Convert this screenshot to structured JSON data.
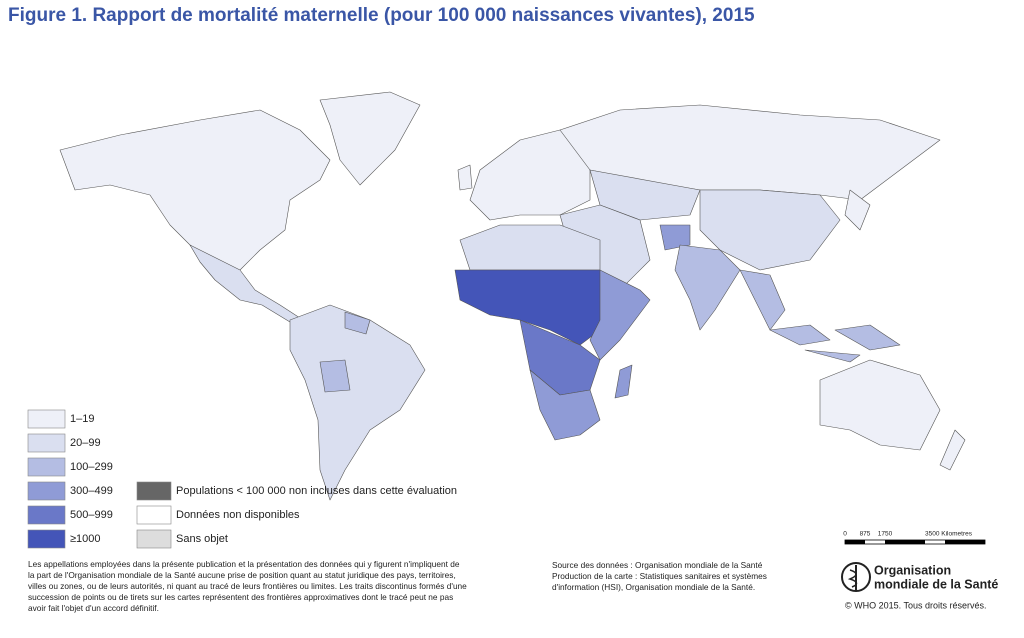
{
  "header": {
    "title": "Figure 1. Rapport de mortalité maternelle (pour 100 000 naissances vivantes), 2015"
  },
  "legend": {
    "classes": [
      {
        "label": "1–19",
        "color": "#eef0f8"
      },
      {
        "label": "20–99",
        "color": "#dadff0"
      },
      {
        "label": "100–299",
        "color": "#b4bde3"
      },
      {
        "label": "300–499",
        "color": "#8f9bd6"
      },
      {
        "label": "500–999",
        "color": "#6a78c8"
      },
      {
        "label": "≥1000",
        "color": "#4455b8"
      }
    ],
    "other": [
      {
        "label": "Populations < 100 000 non incluses dans cette évaluation",
        "color": "#666666"
      },
      {
        "label": "Données non disponibles",
        "color": "#ffffff"
      },
      {
        "label": "Sans objet",
        "color": "#dddddd"
      }
    ]
  },
  "scale": {
    "labels": [
      "0",
      "875",
      "1750",
      "3500 Kilometres"
    ]
  },
  "disclaimer": [
    "Les appellations employées dans la présente publication et la présentation des données qui y figurent n'impliquent de",
    "la part de l'Organisation mondiale de la Santé aucune prise de position quant au statut juridique des pays, territoires,",
    "villes ou zones, ou de leurs autorités, ni quant au tracé de leurs frontières ou limites. Les traits discontinus formés d'une",
    "succession de points ou de tirets sur les cartes représentent des frontières approximatives dont le tracé peut ne pas",
    "avoir fait l'objet d'un accord définitif."
  ],
  "source": [
    "Source des données : Organisation mondiale de la Santé",
    "Production de la carte : Statistiques sanitaires et systèmes",
    "d'information (HSI), Organisation mondiale de la Santé."
  ],
  "logo": [
    "Organisation",
    "mondiale de la Santé"
  ],
  "copyright": "© WHO 2015. Tous droits réservés."
}
